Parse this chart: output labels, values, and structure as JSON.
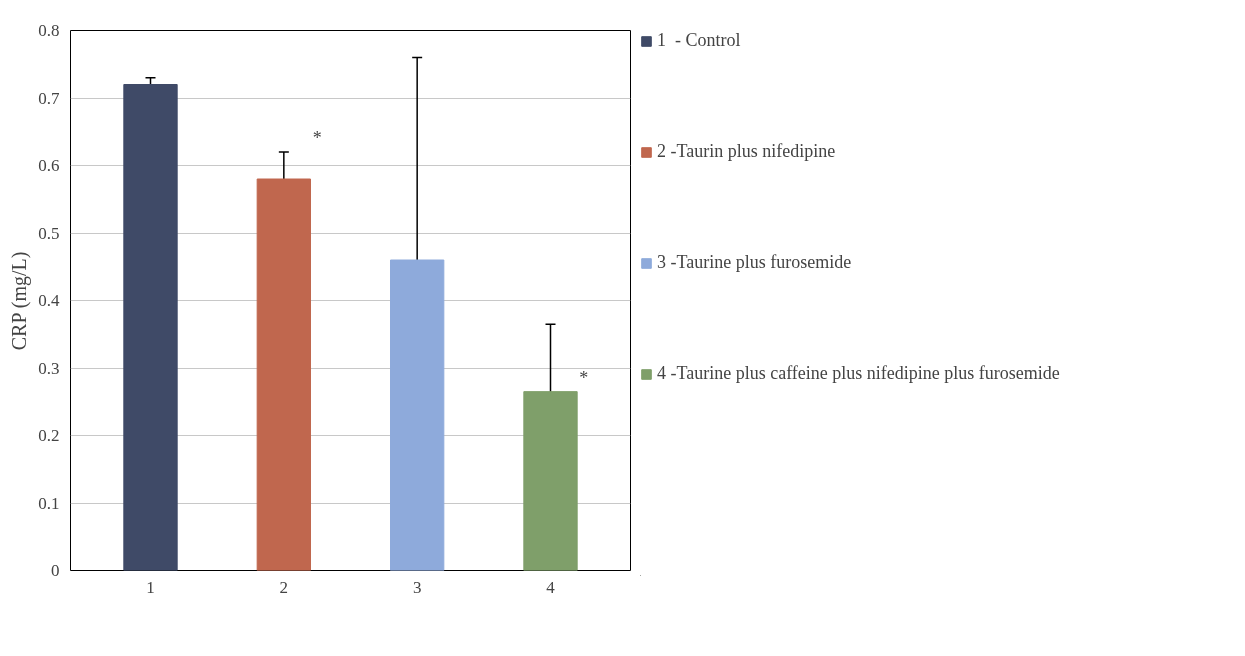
{
  "chart_data": {
    "type": "bar",
    "ylabel": "CRP (mg/L)",
    "categories": [
      "1",
      "2",
      "3",
      "4"
    ],
    "series": [
      {
        "name": "1  - Control",
        "color": "#3f4a67",
        "values": [
          0.72,
          null,
          null,
          null
        ],
        "errors": [
          0.01,
          null,
          null,
          null
        ]
      },
      {
        "name": "2 -Taurin plus nifedipine",
        "color": "#c0674e",
        "values": [
          null,
          0.58,
          null,
          null
        ],
        "errors": [
          null,
          0.04,
          null,
          null
        ]
      },
      {
        "name": "3 -Taurine plus furosemide",
        "color": "#8eaadb",
        "values": [
          null,
          null,
          0.46,
          null
        ],
        "errors": [
          null,
          null,
          0.3,
          null
        ]
      },
      {
        "name": "4 -Taurine plus caffeine plus nifedipine plus furosemide",
        "color": "#7f9f6a",
        "values": [
          null,
          null,
          null,
          0.265
        ],
        "errors": [
          null,
          null,
          null,
          0.1
        ]
      }
    ],
    "ylim": [
      0,
      0.8
    ],
    "yticks": [
      0,
      0.1,
      0.2,
      0.3,
      0.4,
      0.5,
      0.6,
      0.7,
      0.8
    ],
    "annotations": [
      {
        "text": "*",
        "x": "2",
        "y": 0.62
      },
      {
        "text": "*",
        "x": "4",
        "y": 0.265
      }
    ],
    "grid": "y",
    "legend": "right"
  }
}
